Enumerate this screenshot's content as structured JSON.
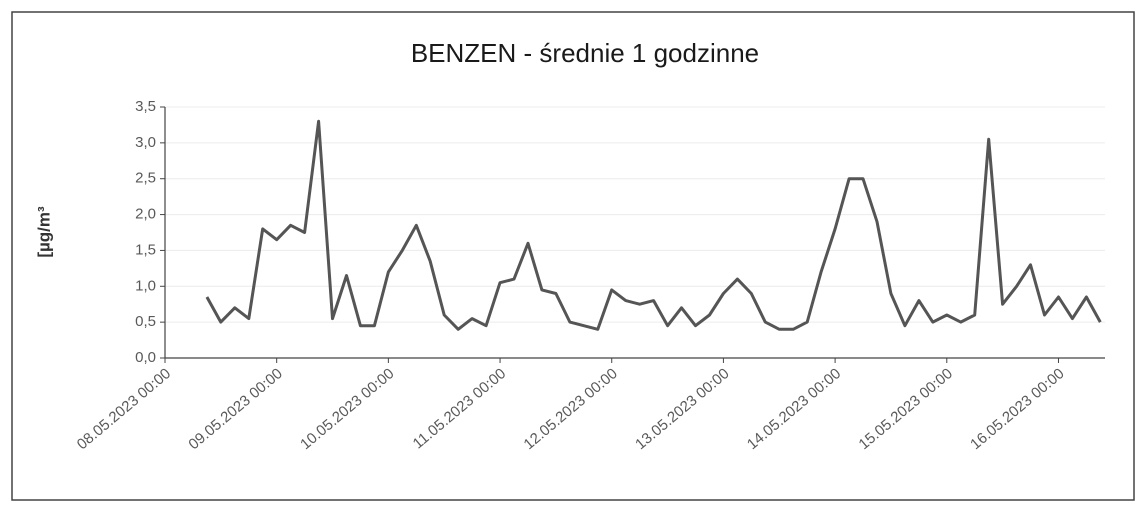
{
  "chart_data": {
    "type": "line",
    "title": "BENZEN - średnie 1 godzinne",
    "y_label": "[µg/m³",
    "x": [
      "08.05.2023 09:00",
      "08.05.2023 12:00",
      "08.05.2023 15:00",
      "08.05.2023 18:00",
      "08.05.2023 21:00",
      "09.05.2023 00:00",
      "09.05.2023 03:00",
      "09.05.2023 06:00",
      "09.05.2023 09:00",
      "09.05.2023 12:00",
      "09.05.2023 15:00",
      "09.05.2023 18:00",
      "09.05.2023 21:00",
      "10.05.2023 00:00",
      "10.05.2023 03:00",
      "10.05.2023 06:00",
      "10.05.2023 09:00",
      "10.05.2023 12:00",
      "10.05.2023 15:00",
      "10.05.2023 18:00",
      "10.05.2023 21:00",
      "11.05.2023 00:00",
      "11.05.2023 03:00",
      "11.05.2023 06:00",
      "11.05.2023 09:00",
      "11.05.2023 12:00",
      "11.05.2023 15:00",
      "11.05.2023 18:00",
      "11.05.2023 21:00",
      "12.05.2023 00:00",
      "12.05.2023 03:00",
      "12.05.2023 06:00",
      "12.05.2023 09:00",
      "12.05.2023 12:00",
      "12.05.2023 15:00",
      "12.05.2023 18:00",
      "12.05.2023 21:00",
      "13.05.2023 00:00",
      "13.05.2023 03:00",
      "13.05.2023 06:00",
      "13.05.2023 09:00",
      "13.05.2023 12:00",
      "13.05.2023 15:00",
      "13.05.2023 18:00",
      "13.05.2023 21:00",
      "14.05.2023 00:00",
      "14.05.2023 03:00",
      "14.05.2023 06:00",
      "14.05.2023 09:00",
      "14.05.2023 12:00",
      "14.05.2023 15:00",
      "14.05.2023 18:00",
      "14.05.2023 21:00",
      "15.05.2023 00:00",
      "15.05.2023 03:00",
      "15.05.2023 06:00",
      "15.05.2023 09:00",
      "15.05.2023 12:00",
      "15.05.2023 15:00",
      "15.05.2023 18:00",
      "15.05.2023 21:00",
      "16.05.2023 00:00",
      "16.05.2023 03:00",
      "16.05.2023 06:00",
      "16.05.2023 09:00"
    ],
    "series": [
      {
        "name": "BENZEN",
        "color": "#555555",
        "values": [
          0.85,
          0.5,
          0.7,
          0.55,
          1.8,
          1.65,
          1.85,
          1.75,
          3.3,
          0.55,
          1.15,
          0.45,
          0.45,
          1.2,
          1.5,
          1.85,
          1.35,
          0.6,
          0.4,
          0.55,
          0.45,
          1.05,
          1.1,
          1.6,
          0.95,
          0.9,
          0.5,
          0.45,
          0.4,
          0.95,
          0.8,
          0.75,
          0.8,
          0.45,
          0.7,
          0.45,
          0.6,
          0.9,
          1.1,
          0.9,
          0.5,
          0.4,
          0.4,
          0.5,
          1.2,
          1.8,
          2.5,
          2.5,
          1.9,
          0.9,
          0.45,
          0.8,
          0.5,
          0.6,
          0.5,
          0.6,
          3.05,
          0.75,
          1.0,
          1.3,
          0.6,
          0.85,
          0.55,
          0.85,
          0.5
        ]
      }
    ],
    "xlim": [
      "08.05.2023 00:00",
      "16.05.2023 10:00"
    ],
    "xticks": [
      "08.05.2023 00:00",
      "09.05.2023 00:00",
      "10.05.2023 00:00",
      "11.05.2023 00:00",
      "12.05.2023 00:00",
      "13.05.2023 00:00",
      "14.05.2023 00:00",
      "15.05.2023 00:00",
      "16.05.2023 00:00"
    ],
    "ylim": [
      0,
      3.5
    ],
    "yticks": [
      {
        "value": 0,
        "label": "0,0"
      },
      {
        "value": 0.5,
        "label": "0,5"
      },
      {
        "value": 1,
        "label": "1,0"
      },
      {
        "value": 1.5,
        "label": "1,5"
      },
      {
        "value": 2,
        "label": "2,0"
      },
      {
        "value": 2.5,
        "label": "2,5"
      },
      {
        "value": 3,
        "label": "3,0"
      },
      {
        "value": 3.5,
        "label": "3,5"
      }
    ],
    "grid": true
  }
}
